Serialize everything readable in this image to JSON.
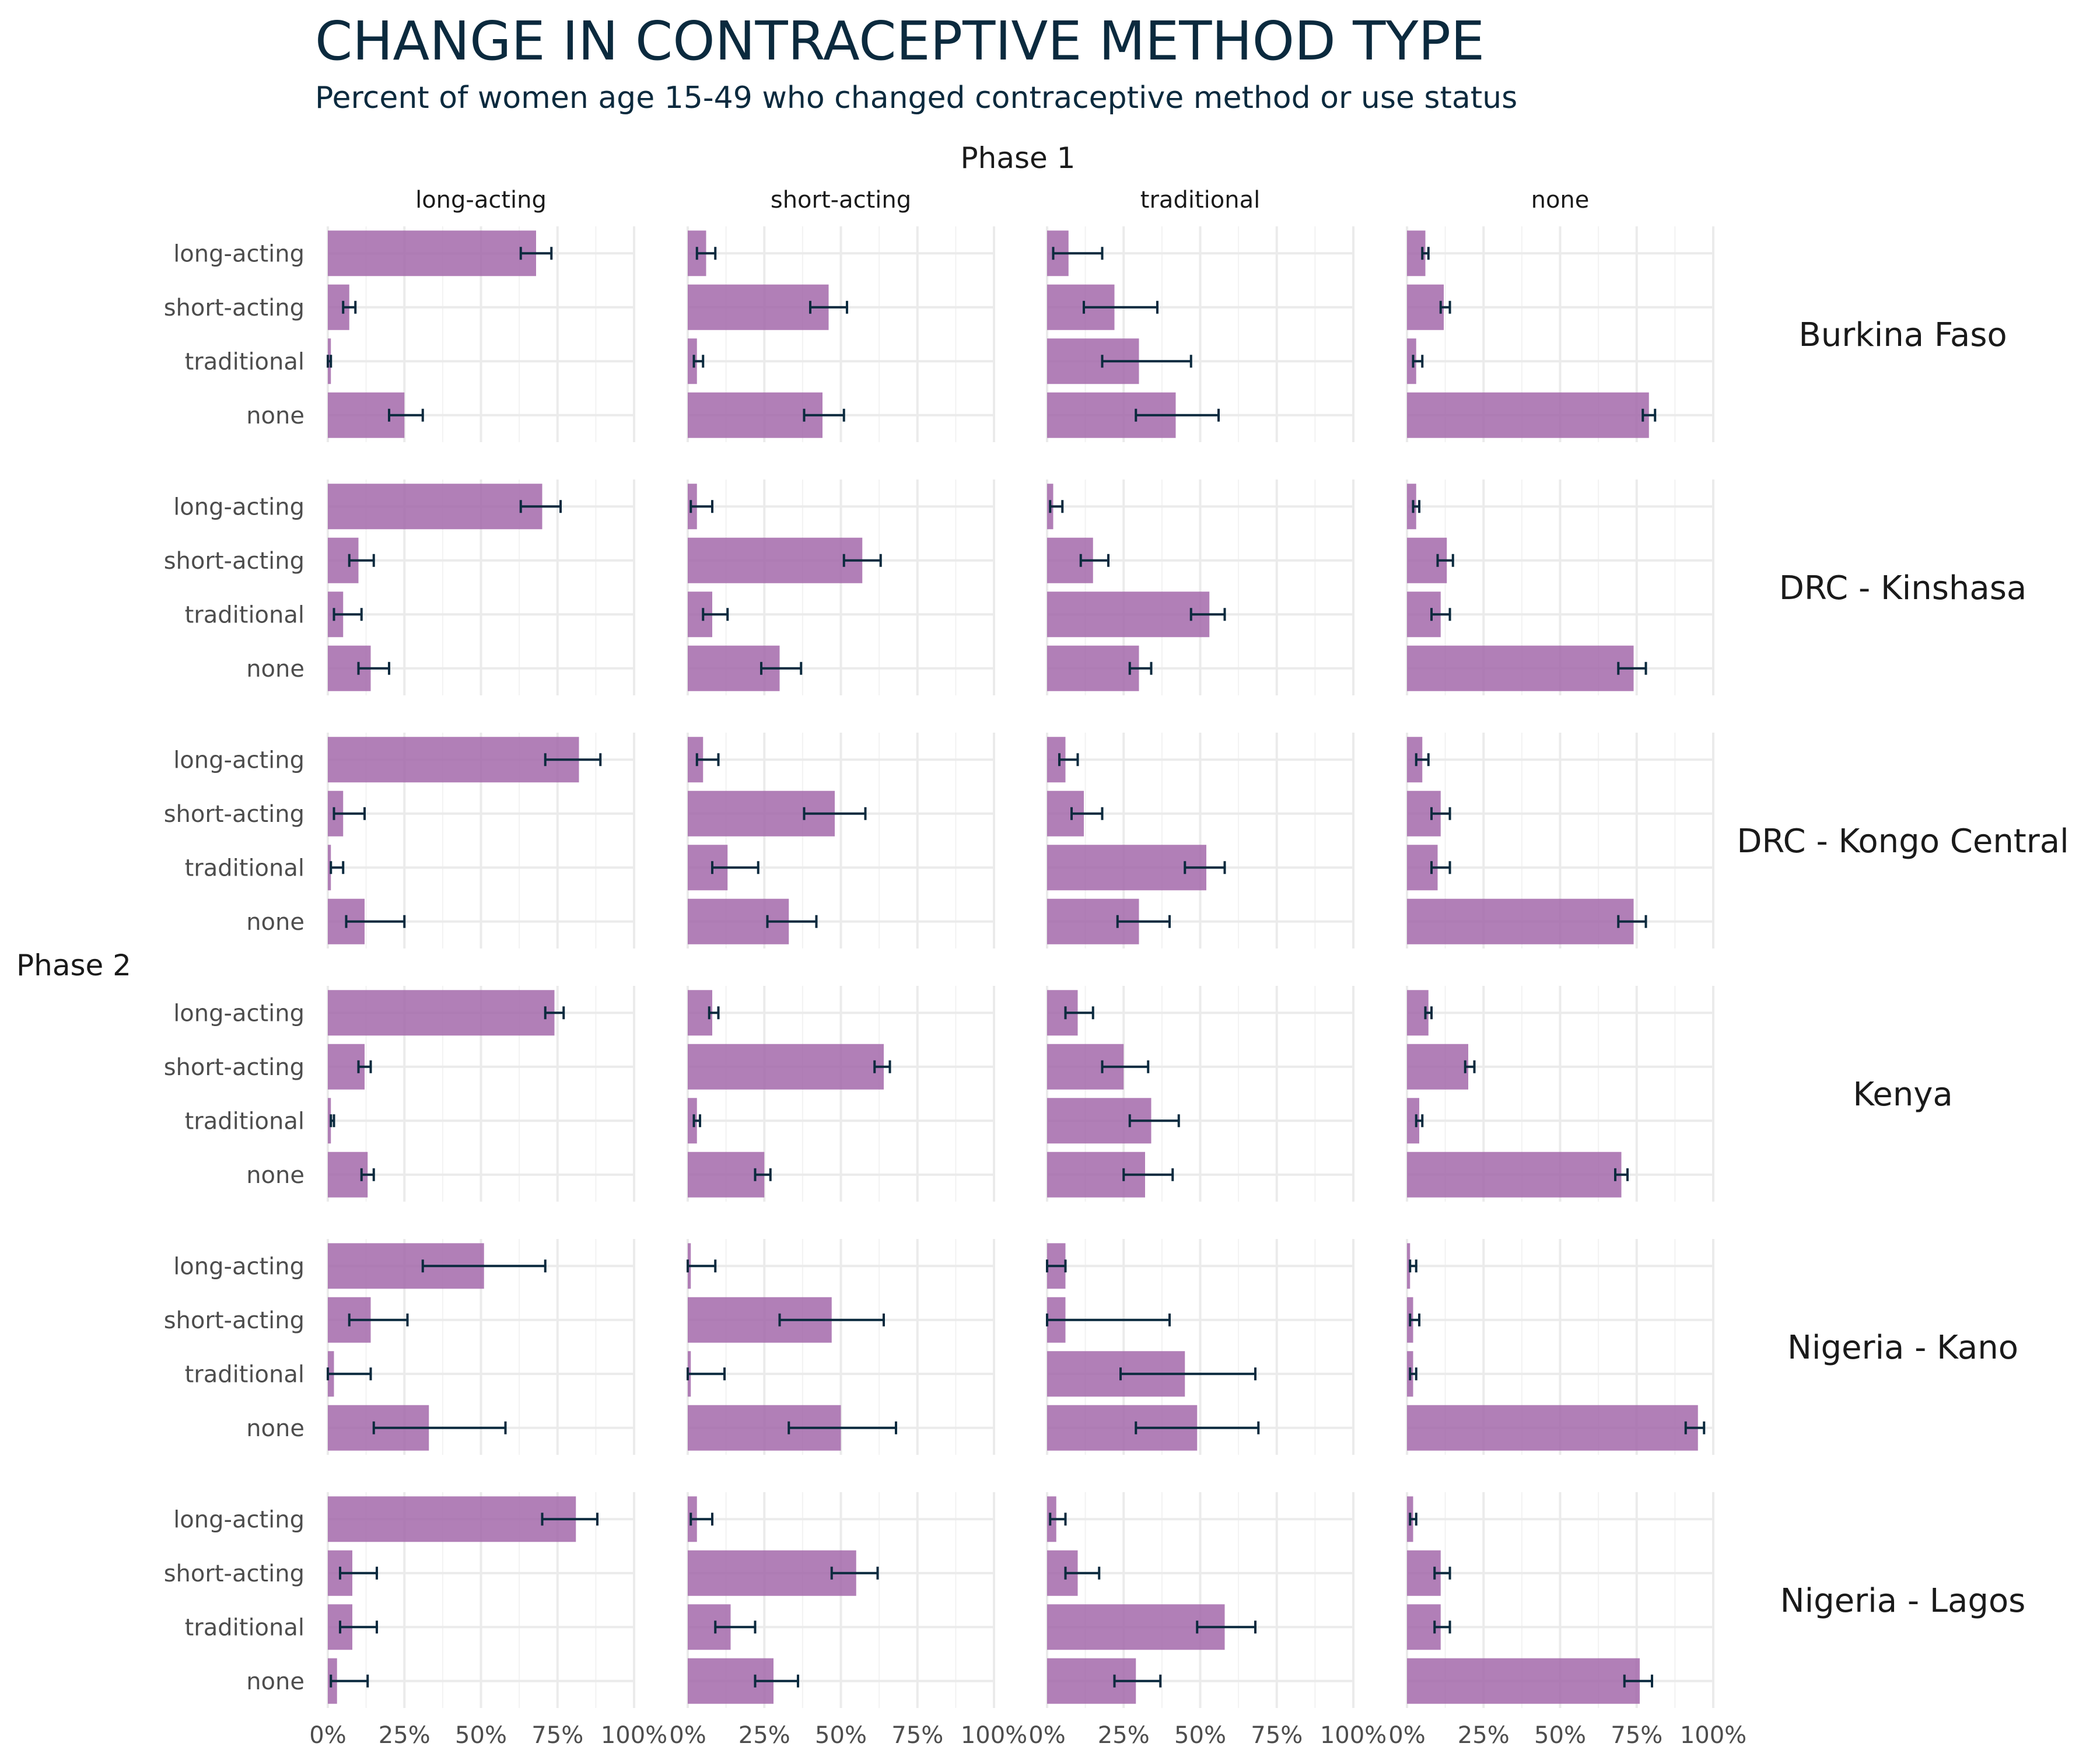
{
  "title": "CHANGE IN CONTRACEPTIVE METHOD TYPE",
  "subtitle": "Percent of women age 15-49 who changed contraceptive method or use status",
  "colors": {
    "bar": "#a368aa",
    "error_bar": "#0b2a3e",
    "title": "#0b2a3e"
  },
  "chart_data": {
    "type": "bar",
    "orientation": "horizontal",
    "facet_col_title": "Phase 1",
    "facet_row_title": "Phase 2",
    "columns": [
      "long-acting",
      "short-acting",
      "traditional",
      "none"
    ],
    "rows": [
      "Burkina Faso",
      "DRC - Kinshasa",
      "DRC - Kongo Central",
      "Kenya",
      "Nigeria - Kano",
      "Nigeria - Lagos"
    ],
    "categories": [
      "long-acting",
      "short-acting",
      "traditional",
      "none"
    ],
    "xlim": [
      0,
      1
    ],
    "x_ticks": [
      0,
      0.25,
      0.5,
      0.75,
      1
    ],
    "x_tick_labels": [
      "0%",
      "25%",
      "50%",
      "75%",
      "100%"
    ],
    "grid": true,
    "error_bars": true,
    "panels": [
      [
        {
          "values": [
            0.68,
            0.07,
            0.01,
            0.25
          ],
          "lower": [
            0.63,
            0.05,
            0.0,
            0.2
          ],
          "upper": [
            0.73,
            0.09,
            0.01,
            0.31
          ]
        },
        {
          "values": [
            0.06,
            0.46,
            0.03,
            0.44
          ],
          "lower": [
            0.03,
            0.4,
            0.02,
            0.38
          ],
          "upper": [
            0.09,
            0.52,
            0.05,
            0.51
          ]
        },
        {
          "values": [
            0.07,
            0.22,
            0.3,
            0.42
          ],
          "lower": [
            0.02,
            0.12,
            0.18,
            0.29
          ],
          "upper": [
            0.18,
            0.36,
            0.47,
            0.56
          ]
        },
        {
          "values": [
            0.06,
            0.12,
            0.03,
            0.79
          ],
          "lower": [
            0.05,
            0.11,
            0.02,
            0.77
          ],
          "upper": [
            0.07,
            0.14,
            0.05,
            0.81
          ]
        }
      ],
      [
        {
          "values": [
            0.7,
            0.1,
            0.05,
            0.14
          ],
          "lower": [
            0.63,
            0.07,
            0.02,
            0.1
          ],
          "upper": [
            0.76,
            0.15,
            0.11,
            0.2
          ]
        },
        {
          "values": [
            0.03,
            0.57,
            0.08,
            0.3
          ],
          "lower": [
            0.01,
            0.51,
            0.05,
            0.24
          ],
          "upper": [
            0.08,
            0.63,
            0.13,
            0.37
          ]
        },
        {
          "values": [
            0.02,
            0.15,
            0.53,
            0.3
          ],
          "lower": [
            0.01,
            0.11,
            0.47,
            0.27
          ],
          "upper": [
            0.05,
            0.2,
            0.58,
            0.34
          ]
        },
        {
          "values": [
            0.03,
            0.13,
            0.11,
            0.74
          ],
          "lower": [
            0.02,
            0.1,
            0.08,
            0.69
          ],
          "upper": [
            0.04,
            0.15,
            0.14,
            0.78
          ]
        }
      ],
      [
        {
          "values": [
            0.82,
            0.05,
            0.01,
            0.12
          ],
          "lower": [
            0.71,
            0.02,
            0.01,
            0.06
          ],
          "upper": [
            0.89,
            0.12,
            0.05,
            0.25
          ]
        },
        {
          "values": [
            0.05,
            0.48,
            0.13,
            0.33
          ],
          "lower": [
            0.03,
            0.38,
            0.08,
            0.26
          ],
          "upper": [
            0.1,
            0.58,
            0.23,
            0.42
          ]
        },
        {
          "values": [
            0.06,
            0.12,
            0.52,
            0.3
          ],
          "lower": [
            0.04,
            0.08,
            0.45,
            0.23
          ],
          "upper": [
            0.1,
            0.18,
            0.58,
            0.4
          ]
        },
        {
          "values": [
            0.05,
            0.11,
            0.1,
            0.74
          ],
          "lower": [
            0.03,
            0.08,
            0.08,
            0.69
          ],
          "upper": [
            0.07,
            0.14,
            0.14,
            0.78
          ]
        }
      ],
      [
        {
          "values": [
            0.74,
            0.12,
            0.01,
            0.13
          ],
          "lower": [
            0.71,
            0.1,
            0.01,
            0.11
          ],
          "upper": [
            0.77,
            0.14,
            0.02,
            0.15
          ]
        },
        {
          "values": [
            0.08,
            0.64,
            0.03,
            0.25
          ],
          "lower": [
            0.07,
            0.61,
            0.02,
            0.22
          ],
          "upper": [
            0.1,
            0.66,
            0.04,
            0.27
          ]
        },
        {
          "values": [
            0.1,
            0.25,
            0.34,
            0.32
          ],
          "lower": [
            0.06,
            0.18,
            0.27,
            0.25
          ],
          "upper": [
            0.15,
            0.33,
            0.43,
            0.41
          ]
        },
        {
          "values": [
            0.07,
            0.2,
            0.04,
            0.7
          ],
          "lower": [
            0.06,
            0.19,
            0.03,
            0.68
          ],
          "upper": [
            0.08,
            0.22,
            0.05,
            0.72
          ]
        }
      ],
      [
        {
          "values": [
            0.51,
            0.14,
            0.02,
            0.33
          ],
          "lower": [
            0.31,
            0.07,
            0.0,
            0.15
          ],
          "upper": [
            0.71,
            0.26,
            0.14,
            0.58
          ]
        },
        {
          "values": [
            0.01,
            0.47,
            0.01,
            0.5
          ],
          "lower": [
            0.0,
            0.3,
            0.0,
            0.33
          ],
          "upper": [
            0.09,
            0.64,
            0.12,
            0.68
          ]
        },
        {
          "values": [
            0.06,
            0.06,
            0.45,
            0.49
          ],
          "lower": [
            0.0,
            0.0,
            0.24,
            0.29
          ],
          "upper": [
            0.06,
            0.4,
            0.68,
            0.69
          ]
        },
        {
          "values": [
            0.01,
            0.02,
            0.02,
            0.95
          ],
          "lower": [
            0.01,
            0.01,
            0.01,
            0.91
          ],
          "upper": [
            0.03,
            0.04,
            0.03,
            0.97
          ]
        }
      ],
      [
        {
          "values": [
            0.81,
            0.08,
            0.08,
            0.03
          ],
          "lower": [
            0.7,
            0.04,
            0.04,
            0.01
          ],
          "upper": [
            0.88,
            0.16,
            0.16,
            0.13
          ]
        },
        {
          "values": [
            0.03,
            0.55,
            0.14,
            0.28
          ],
          "lower": [
            0.01,
            0.47,
            0.09,
            0.22
          ],
          "upper": [
            0.08,
            0.62,
            0.22,
            0.36
          ]
        },
        {
          "values": [
            0.03,
            0.1,
            0.58,
            0.29
          ],
          "lower": [
            0.01,
            0.06,
            0.49,
            0.22
          ],
          "upper": [
            0.06,
            0.17,
            0.68,
            0.37
          ]
        },
        {
          "values": [
            0.02,
            0.11,
            0.11,
            0.76
          ],
          "lower": [
            0.01,
            0.09,
            0.09,
            0.71
          ],
          "upper": [
            0.03,
            0.14,
            0.14,
            0.8
          ]
        }
      ]
    ]
  }
}
